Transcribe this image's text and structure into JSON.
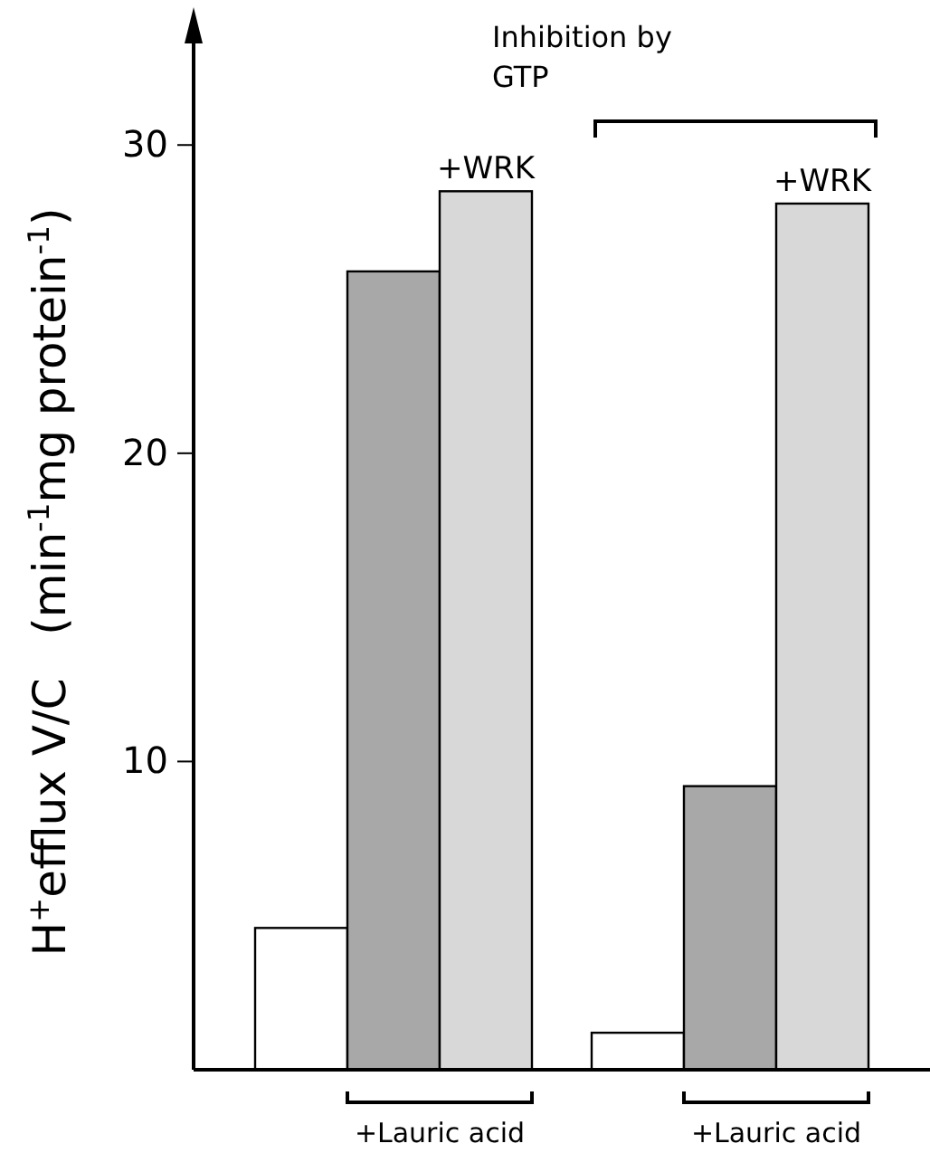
{
  "chart_data": {
    "type": "bar",
    "categories": [
      null,
      null,
      null,
      null,
      null,
      null
    ],
    "values": [
      4.6,
      25.9,
      28.5,
      1.2,
      9.2,
      28.1
    ],
    "colors": [
      "#ffffff",
      "#a8a8a8",
      "#d8d8d8",
      "#ffffff",
      "#a8a8a8",
      "#d8d8d8"
    ],
    "ylabel": "H$^{+}$efflux V/C   (min$^{-1}$mg protein$^{-1}$)",
    "ylim": [
      0,
      34
    ],
    "yticks": [
      10,
      20,
      30
    ],
    "grid": false,
    "annotations": [
      "+WRK",
      "+WRK",
      "Inhibition by GTP",
      "+Lauric acid",
      "+Lauric acid"
    ]
  }
}
